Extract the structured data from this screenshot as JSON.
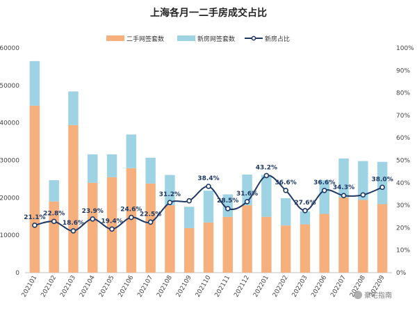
{
  "chart_data": {
    "type": "bar",
    "title": "上海各月一二手房成交占比",
    "stacked": true,
    "categories": [
      "202101",
      "202102",
      "202103",
      "202104",
      "202105",
      "202106",
      "202107",
      "202108",
      "202109",
      "202110",
      "202111",
      "202112",
      "202201",
      "202202",
      "202203",
      "202206",
      "202207",
      "202208",
      "202209"
    ],
    "series": [
      {
        "name": "二手网签套数",
        "type": "bar",
        "axis": "left",
        "color": "#f5b07d",
        "values": [
          44600,
          19000,
          39400,
          24000,
          25500,
          27900,
          23800,
          18000,
          11900,
          13400,
          14900,
          18000,
          14900,
          12600,
          12900,
          15700,
          20100,
          19400,
          18300
        ]
      },
      {
        "name": "新房网签套数",
        "type": "bar",
        "axis": "left",
        "color": "#9dd3e2",
        "values": [
          11900,
          5700,
          9000,
          7600,
          6100,
          9000,
          6900,
          8100,
          5700,
          8500,
          6000,
          8200,
          11200,
          7300,
          3500,
          9000,
          10400,
          10400,
          11300
        ]
      },
      {
        "name": "新房占比",
        "type": "line",
        "axis": "right",
        "color": "#1f3864",
        "values": [
          21.1,
          22.8,
          18.6,
          23.9,
          19.4,
          24.6,
          22.5,
          31.2,
          32.0,
          38.4,
          28.5,
          31.6,
          43.2,
          36.6,
          27.6,
          36.6,
          34.3,
          34.6,
          38.0
        ],
        "labels": [
          "21.1%",
          "22.8%",
          "18.6%",
          "23.9%",
          "19.4%",
          "24.6%",
          "22.5%",
          "31.2%",
          "",
          "38.4%",
          "28.5%",
          "31.6%",
          "43.2%",
          "36.6%",
          "27.6%",
          "36.6%",
          "34.3%",
          "",
          "38.0%"
        ]
      }
    ],
    "y_left": {
      "min": 0,
      "max": 60000,
      "ticks": [
        "0",
        "10000",
        "20000",
        "30000",
        "40000",
        "50000",
        "60000"
      ]
    },
    "y_right": {
      "min": 0,
      "max": 100,
      "ticks": [
        "0%",
        "10%",
        "20%",
        "30%",
        "40%",
        "50%",
        "60%",
        "70%",
        "80%",
        "90%",
        "100%"
      ]
    },
    "grid": false,
    "legend_position": "top"
  },
  "watermark": {
    "text": "豪宅指南",
    "icon": "wechat-icon"
  }
}
